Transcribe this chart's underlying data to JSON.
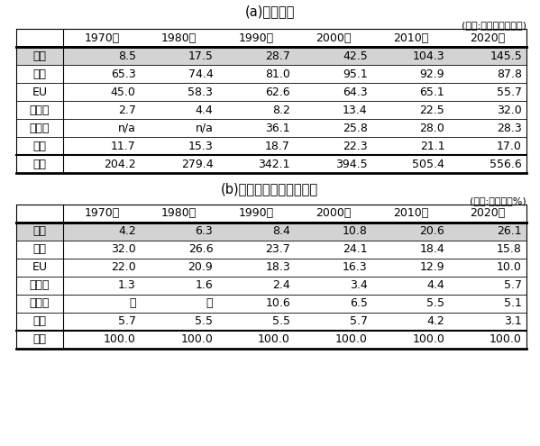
{
  "title_a": "(a)　消費量",
  "title_b": "(b)　世界に占めるシェア",
  "unit_a": "(単位:エクサジュール)",
  "unit_b": "(単位:シェア、%)",
  "columns": [
    "",
    "1970年",
    "1980年",
    "1990年",
    "2000年",
    "2010年",
    "2020年"
  ],
  "table_a": [
    [
      "中国",
      "8.5",
      "17.5",
      "28.7",
      "42.5",
      "104.3",
      "145.5"
    ],
    [
      "米国",
      "65.3",
      "74.4",
      "81.0",
      "95.1",
      "92.9",
      "87.8"
    ],
    [
      "EU",
      "45.0",
      "58.3",
      "62.6",
      "64.3",
      "65.1",
      "55.7"
    ],
    [
      "インド",
      "2.7",
      "4.4",
      "8.2",
      "13.4",
      "22.5",
      "32.0"
    ],
    [
      "ロシア",
      "n/a",
      "n/a",
      "36.1",
      "25.8",
      "28.0",
      "28.3"
    ],
    [
      "日本",
      "11.7",
      "15.3",
      "18.7",
      "22.3",
      "21.1",
      "17.0"
    ],
    [
      "世界",
      "204.2",
      "279.4",
      "342.1",
      "394.5",
      "505.4",
      "556.6"
    ]
  ],
  "table_b": [
    [
      "中国",
      "4.2",
      "6.3",
      "8.4",
      "10.8",
      "20.6",
      "26.1"
    ],
    [
      "米国",
      "32.0",
      "26.6",
      "23.7",
      "24.1",
      "18.4",
      "15.8"
    ],
    [
      "EU",
      "22.0",
      "20.9",
      "18.3",
      "16.3",
      "12.9",
      "10.0"
    ],
    [
      "インド",
      "1.3",
      "1.6",
      "2.4",
      "3.4",
      "4.4",
      "5.7"
    ],
    [
      "ロシア",
      "－",
      "－",
      "10.6",
      "6.5",
      "5.5",
      "5.1"
    ],
    [
      "日本",
      "5.7",
      "5.5",
      "5.5",
      "5.7",
      "4.2",
      "3.1"
    ],
    [
      "世界",
      "100.0",
      "100.0",
      "100.0",
      "100.0",
      "100.0",
      "100.0"
    ]
  ],
  "highlight_row": 0,
  "highlight_color": "#d3d3d3",
  "text_color": "#000000",
  "fontsize_title": 10.5,
  "fontsize_unit": 8.0,
  "fontsize_table": 9.0
}
